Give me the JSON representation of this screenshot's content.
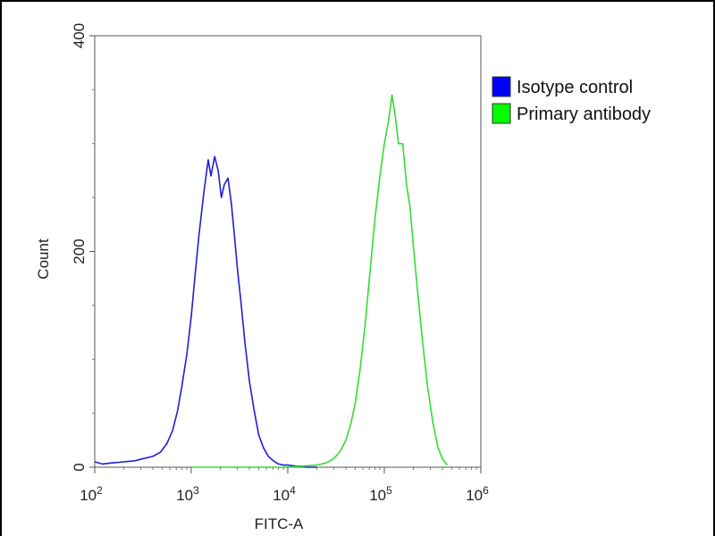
{
  "chart_data": {
    "type": "line",
    "title": "",
    "xlabel": "FITC-A",
    "ylabel": "Count",
    "xscale": "log",
    "xlim": [
      100,
      1000000
    ],
    "ylim": [
      0,
      400
    ],
    "grid": false,
    "legend_position": "right-outside",
    "x_ticks": [
      {
        "value": 100,
        "base": "10",
        "exp": "2"
      },
      {
        "value": 1000,
        "base": "10",
        "exp": "3"
      },
      {
        "value": 10000,
        "base": "10",
        "exp": "4"
      },
      {
        "value": 100000,
        "base": "10",
        "exp": "5"
      },
      {
        "value": 1000000,
        "base": "10",
        "exp": "6"
      }
    ],
    "y_ticks": [
      {
        "value": 0,
        "label": "0"
      },
      {
        "value": 200,
        "label": "200"
      },
      {
        "value": 400,
        "label": "400"
      }
    ],
    "series": [
      {
        "name": "Isotype control",
        "color": "#1f1fd6",
        "swatch": "#0000ff",
        "x": [
          100,
          120,
          150,
          200,
          260,
          320,
          400,
          480,
          560,
          640,
          720,
          800,
          900,
          1000,
          1100,
          1200,
          1350,
          1500,
          1600,
          1750,
          1900,
          2050,
          2200,
          2400,
          2600,
          2800,
          3000,
          3300,
          3600,
          4000,
          4500,
          5000,
          5600,
          6300,
          7100,
          8000,
          9000,
          10000,
          12000,
          14000,
          16000,
          20000
        ],
        "y": [
          5,
          3,
          4,
          5,
          6,
          8,
          10,
          14,
          22,
          34,
          52,
          75,
          105,
          140,
          180,
          215,
          255,
          285,
          270,
          288,
          275,
          250,
          262,
          268,
          245,
          215,
          185,
          150,
          115,
          80,
          52,
          30,
          18,
          10,
          6,
          3,
          2,
          2,
          1,
          1,
          0,
          0
        ]
      },
      {
        "name": "Primary antibody",
        "color": "#33dd33",
        "swatch": "#00ff00",
        "x": [
          1000,
          5000,
          10000,
          20000,
          25000,
          30000,
          35000,
          40000,
          45000,
          50000,
          56000,
          63000,
          71000,
          80000,
          90000,
          100000,
          110000,
          120000,
          130000,
          140000,
          155000,
          170000,
          185000,
          200000,
          220000,
          250000,
          280000,
          320000,
          360000,
          400000,
          450000
        ],
        "y": [
          0,
          0,
          0,
          2,
          4,
          8,
          15,
          25,
          40,
          60,
          90,
          130,
          180,
          230,
          270,
          300,
          320,
          345,
          325,
          300,
          300,
          262,
          240,
          205,
          165,
          115,
          75,
          40,
          18,
          8,
          2
        ]
      }
    ]
  }
}
